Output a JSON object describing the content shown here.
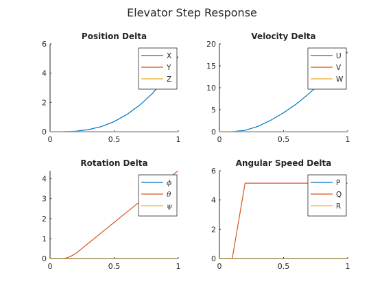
{
  "figure_title": "Elevator Step Response",
  "colors": {
    "series1": "#0072BD",
    "series2": "#D95319",
    "series3": "#EDB120",
    "axes": "#262626"
  },
  "chart_data": [
    {
      "type": "line",
      "title": "Position Delta",
      "xlim": [
        0,
        1
      ],
      "ylim": [
        0,
        6
      ],
      "xticks": [
        0,
        0.5,
        1
      ],
      "yticks": [
        0,
        2,
        4,
        6
      ],
      "xtick_labels": [
        "0",
        "0.5",
        "1"
      ],
      "ytick_labels": [
        "0",
        "2",
        "4",
        "6"
      ],
      "legend_position": "top-right",
      "series": [
        {
          "name": "X",
          "color": "#0072BD",
          "x": [
            0.1,
            0.2,
            0.3,
            0.4,
            0.5,
            0.6,
            0.7,
            0.8,
            0.9,
            1.0
          ],
          "y": [
            0,
            0.03,
            0.14,
            0.35,
            0.69,
            1.18,
            1.82,
            2.62,
            3.7,
            5.15
          ]
        },
        {
          "name": "Y",
          "color": "#D95319",
          "x": [
            0,
            1
          ],
          "y": [
            0,
            0
          ]
        },
        {
          "name": "Z",
          "color": "#EDB120",
          "x": [
            0,
            1
          ],
          "y": [
            0,
            0
          ]
        }
      ]
    },
    {
      "type": "line",
      "title": "Velocity Delta",
      "xlim": [
        0,
        1
      ],
      "ylim": [
        0,
        20
      ],
      "xticks": [
        0,
        0.5,
        1
      ],
      "yticks": [
        0,
        5,
        10,
        15,
        20
      ],
      "xtick_labels": [
        "0",
        "0.5",
        "1"
      ],
      "ytick_labels": [
        "0",
        "5",
        "10",
        "15",
        "20"
      ],
      "legend_position": "top-right",
      "series": [
        {
          "name": "U",
          "color": "#0072BD",
          "x": [
            0.1,
            0.2,
            0.3,
            0.4,
            0.5,
            0.6,
            0.7,
            0.8,
            0.9,
            1.0
          ],
          "y": [
            0,
            0.3,
            1.2,
            2.6,
            4.3,
            6.3,
            8.7,
            11.4,
            14.5,
            18.2
          ]
        },
        {
          "name": "V",
          "color": "#D95319",
          "x": [
            0,
            1
          ],
          "y": [
            0,
            0
          ]
        },
        {
          "name": "W",
          "color": "#EDB120",
          "x": [
            0,
            1
          ],
          "y": [
            0,
            0
          ]
        }
      ]
    },
    {
      "type": "line",
      "title": "Rotation Delta",
      "xlim": [
        0,
        1
      ],
      "ylim": [
        0,
        4.4
      ],
      "xticks": [
        0,
        0.5,
        1
      ],
      "yticks": [
        0,
        1,
        2,
        3,
        4
      ],
      "xtick_labels": [
        "0",
        "0.5",
        "1"
      ],
      "ytick_labels": [
        "0",
        "1",
        "2",
        "3",
        "4"
      ],
      "legend_position": "top-right",
      "series": [
        {
          "name": "ϕ",
          "color": "#0072BD",
          "x": [
            0,
            1
          ],
          "y": [
            0,
            0
          ]
        },
        {
          "name": "θ",
          "color": "#D95319",
          "x": [
            0,
            0.1,
            0.13,
            0.17,
            0.2,
            0.3,
            0.4,
            0.5,
            0.6,
            0.7,
            0.8,
            0.9,
            1.0
          ],
          "y": [
            0,
            0,
            0.03,
            0.14,
            0.25,
            0.77,
            1.29,
            1.81,
            2.33,
            2.85,
            3.37,
            3.89,
            4.41
          ]
        },
        {
          "name": "ψ",
          "color": "#EDB120",
          "x": [
            0,
            1
          ],
          "y": [
            0,
            0
          ]
        }
      ]
    },
    {
      "type": "line",
      "title": "Angular Speed Delta",
      "xlim": [
        0,
        1
      ],
      "ylim": [
        0,
        6
      ],
      "xticks": [
        0,
        0.5,
        1
      ],
      "yticks": [
        0,
        2,
        4,
        6
      ],
      "xtick_labels": [
        "0",
        "0.5",
        "1"
      ],
      "ytick_labels": [
        "0",
        "2",
        "4",
        "6"
      ],
      "legend_position": "top-right",
      "series": [
        {
          "name": "P",
          "color": "#0072BD",
          "x": [
            0,
            1
          ],
          "y": [
            0,
            0
          ]
        },
        {
          "name": "Q",
          "color": "#D95319",
          "x": [
            0,
            0.1,
            0.2,
            1.0
          ],
          "y": [
            0,
            0,
            5.15,
            5.15
          ]
        },
        {
          "name": "R",
          "color": "#EDB120",
          "x": [
            0,
            1
          ],
          "y": [
            0,
            0
          ]
        }
      ]
    }
  ]
}
